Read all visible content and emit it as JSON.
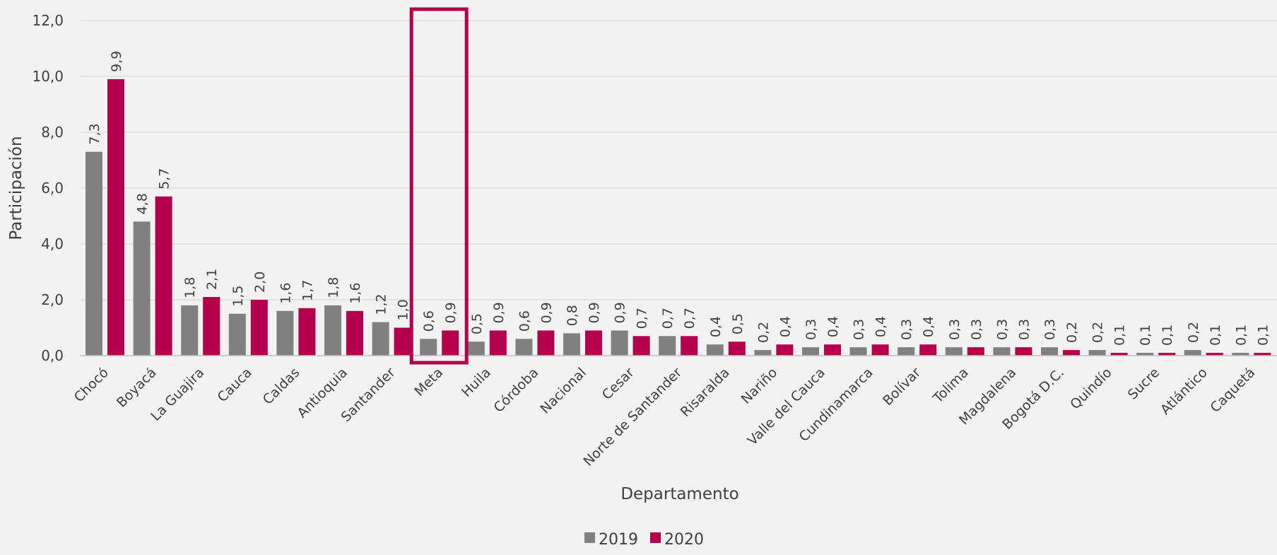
{
  "chart_data": {
    "type": "bar",
    "xlabel": "Departamento",
    "ylabel": "Participación",
    "ylim": [
      0,
      12
    ],
    "yticks": [
      "0,0",
      "2,0",
      "4,0",
      "6,0",
      "8,0",
      "10,0",
      "12,0"
    ],
    "grid": true,
    "legend_position": "bottom",
    "categories": [
      "Chocó",
      "Boyacá",
      "La Guajira",
      "Cauca",
      "Caldas",
      "Antioquia",
      "Santander",
      "Meta",
      "Huila",
      "Córdoba",
      "Nacional",
      "Cesar",
      "Norte de Santander",
      "Risaralda",
      "Nariño",
      "Valle del Cauca",
      "Cundinamarca",
      "Bolívar",
      "Tolima",
      "Magdalena",
      "Bogotá D.C.",
      "Quindío",
      "Sucre",
      "Atlántico",
      "Caquetá"
    ],
    "series": [
      {
        "name": "2019",
        "color": "#808080",
        "values": [
          7.3,
          4.8,
          1.8,
          1.5,
          1.6,
          1.8,
          1.2,
          0.6,
          0.5,
          0.6,
          0.8,
          0.9,
          0.7,
          0.4,
          0.2,
          0.3,
          0.3,
          0.3,
          0.3,
          0.3,
          0.3,
          0.2,
          0.1,
          0.2,
          0.1
        ],
        "labels": [
          "7,3",
          "4,8",
          "1,8",
          "1,5",
          "1,6",
          "1,8",
          "1,2",
          "0,6",
          "0,5",
          "0,6",
          "0,8",
          "0,9",
          "0,7",
          "0,4",
          "0,2",
          "0,3",
          "0,3",
          "0,3",
          "0,3",
          "0,3",
          "0,3",
          "0,2",
          "0,1",
          "0,2",
          "0,1"
        ]
      },
      {
        "name": "2020",
        "color": "#b5004b",
        "values": [
          9.9,
          5.7,
          2.1,
          2.0,
          1.7,
          1.6,
          1.0,
          0.9,
          0.9,
          0.9,
          0.9,
          0.7,
          0.7,
          0.5,
          0.4,
          0.4,
          0.4,
          0.4,
          0.3,
          0.3,
          0.2,
          0.1,
          0.1,
          0.1,
          0.1
        ],
        "labels": [
          "9,9",
          "5,7",
          "2,1",
          "2,0",
          "1,7",
          "1,6",
          "1,0",
          "0,9",
          "0,9",
          "0,9",
          "0,9",
          "0,7",
          "0,7",
          "0,5",
          "0,4",
          "0,4",
          "0,4",
          "0,4",
          "0,3",
          "0,3",
          "0,2",
          "0,1",
          "0,1",
          "0,1",
          "0,1"
        ]
      }
    ],
    "highlight_category": "Meta",
    "highlight_color": "#b5004b"
  }
}
